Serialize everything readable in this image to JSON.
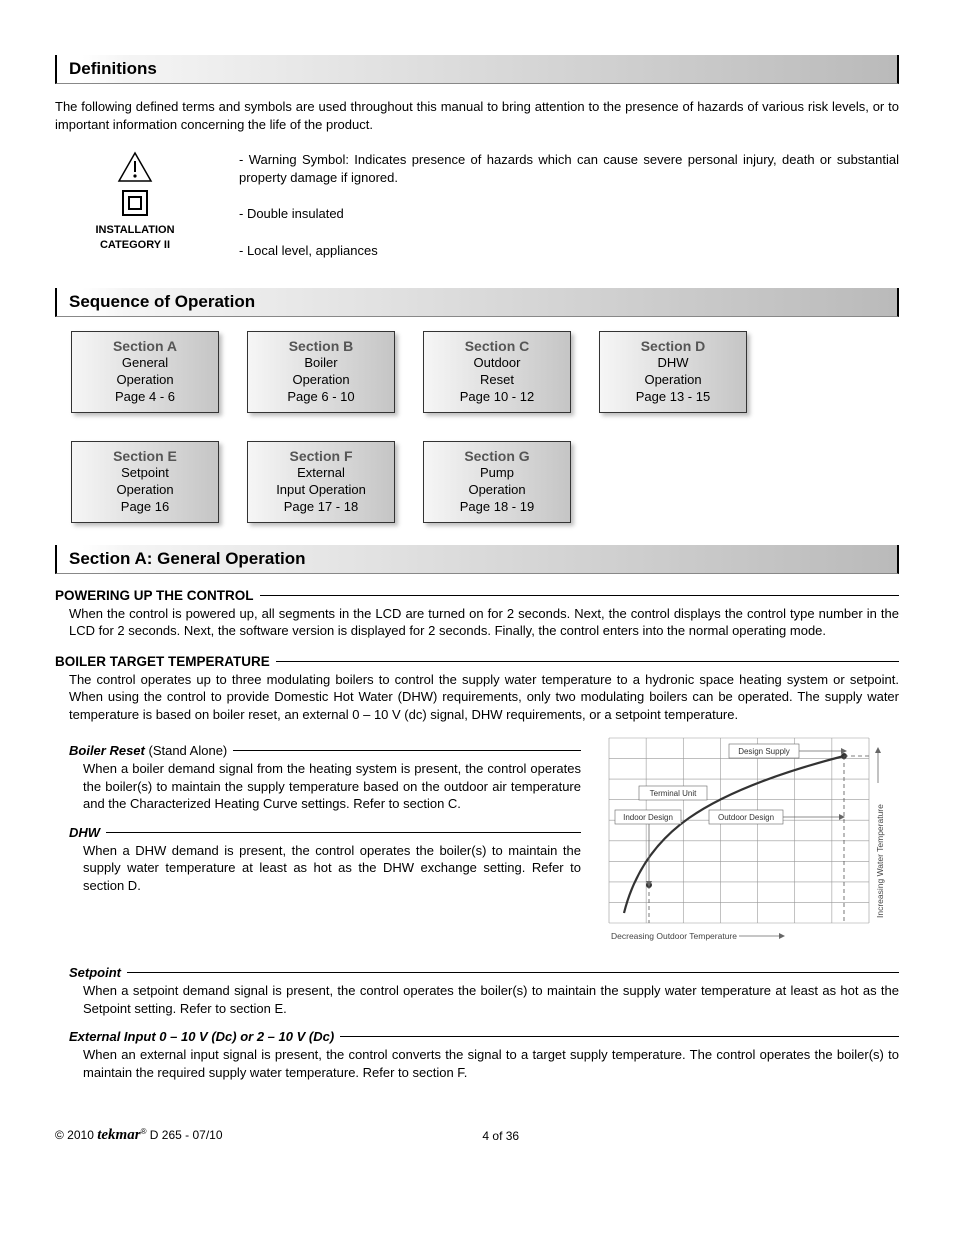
{
  "headers": {
    "definitions": "Definitions",
    "sequence": "Sequence of Operation",
    "sectionA": "Section A: General Operation"
  },
  "intro": "The following defined terms and symbols are used throughout this manual to bring attention to the presence of hazards of various risk levels, or to important information concerning the life of the product.",
  "icons_label1": "INSTALLATION",
  "icons_label2": "CATEGORY II",
  "def_items": {
    "warning": "- Warning Symbol: Indicates presence of hazards which can cause severe personal injury, death or substantial property damage if ignored.",
    "double": "- Double insulated",
    "local": "- Local level, appliances"
  },
  "sections": [
    {
      "t": "Section A",
      "l1": "General",
      "l2": "Operation",
      "pg": "Page 4 - 6"
    },
    {
      "t": "Section B",
      "l1": "Boiler",
      "l2": "Operation",
      "pg": "Page 6 - 10"
    },
    {
      "t": "Section C",
      "l1": "Outdoor",
      "l2": "Reset",
      "pg": "Page 10 - 12"
    },
    {
      "t": "Section D",
      "l1": "DHW",
      "l2": "Operation",
      "pg": "Page 13 - 15"
    },
    {
      "t": "Section E",
      "l1": "Setpoint",
      "l2": "Operation",
      "pg": "Page 16"
    },
    {
      "t": "Section F",
      "l1": "External",
      "l2": "Input Operation",
      "pg": "Page 17 - 18"
    },
    {
      "t": "Section G",
      "l1": "Pump",
      "l2": "Operation",
      "pg": "Page 18 - 19"
    }
  ],
  "powering": {
    "h": "POWERING UP THE CONTROL",
    "p": "When the control is powered up, all segments in the LCD are turned on for 2 seconds. Next, the control displays the control type number in the LCD for 2 seconds. Next, the software version is displayed for 2 seconds. Finally, the control enters into the normal operating mode."
  },
  "target": {
    "h": "BOILER TARGET TEMPERATURE",
    "p": "The control operates up to three modulating boilers to control the supply water temperature to a hydronic space heating system or setpoint. When using the control to provide Domestic Hot Water (DHW) requirements, only two modulating boilers can be operated. The supply water temperature is based on boiler reset, an external 0 – 10 V (dc) signal, DHW requirements, or a setpoint temperature."
  },
  "reset": {
    "h": "Boiler Reset",
    "h2": " (Stand Alone)",
    "p": "When a boiler demand signal from the heating system is present, the control operates the boiler(s) to maintain the supply temperature based on the outdoor air temperature and the Characterized Heating Curve settings. Refer to section C."
  },
  "dhw": {
    "h": "DHW",
    "p": "When a DHW demand is present, the control operates the boiler(s) to maintain the supply water temperature at least as hot as the DHW exchange setting. Refer to section D."
  },
  "setpoint": {
    "h": "Setpoint",
    "p": "When a setpoint demand signal is present, the control operates the boiler(s) to maintain the supply water temperature at least as hot as the Setpoint setting. Refer to section E."
  },
  "ext": {
    "h": "External Input 0 – 10 V (Dc) or 2 – 10 V (Dc)",
    "p": "When an external input signal is present, the control converts the signal to a target supply temperature. The control operates the boiler(s) to maintain the required supply water temperature. Refer to section F."
  },
  "chart": {
    "labels": {
      "design_supply": "Design Supply",
      "terminal_unit": "Terminal Unit",
      "indoor_design": "Indoor Design",
      "outdoor_design": "Outdoor Design",
      "x_axis": "Decreasing Outdoor Temperature",
      "y_axis": "Increasing Water Temperature"
    },
    "grid": {
      "cols": 7,
      "rows": 9,
      "stroke": "#999999",
      "bg": "#ffffff"
    },
    "curve_stroke": "#333333",
    "curve_width": 2.2,
    "dash": "4,3",
    "arrow_color": "#666666"
  },
  "footer": {
    "copyright": "© 2010",
    "brand": "tekmar",
    "doc": " D 265 - 07/10",
    "page": "4 of 36"
  },
  "colors": {
    "header_grad_start": "#ffffff",
    "header_grad_end": "#bababa",
    "box_grad_start": "#f6f6f6",
    "box_grad_end": "#c5c5c5",
    "text": "#000000"
  }
}
